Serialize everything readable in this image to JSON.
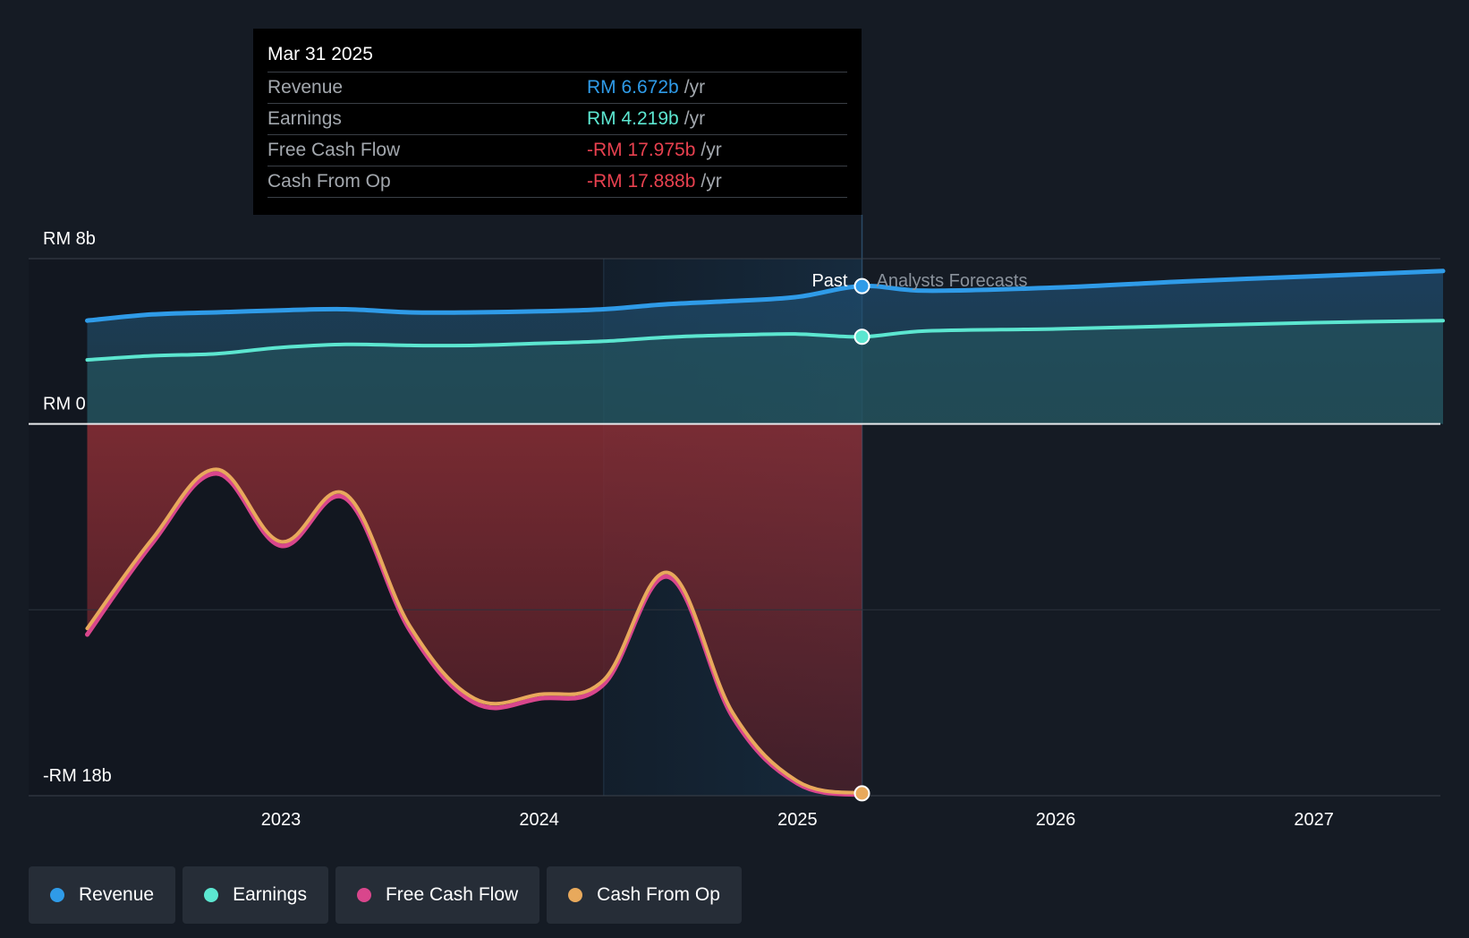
{
  "tooltip": {
    "date": "Mar 31 2025",
    "rows": [
      {
        "name": "Revenue",
        "value": "RM 6.672b",
        "unit": "/yr",
        "color": "#2f9be8"
      },
      {
        "name": "Earnings",
        "value": "RM 4.219b",
        "unit": "/yr",
        "color": "#5ce6d0"
      },
      {
        "name": "Free Cash Flow",
        "value": "-RM 17.975b",
        "unit": "/yr",
        "color": "#e8414f"
      },
      {
        "name": "Cash From Op",
        "value": "-RM 17.888b",
        "unit": "/yr",
        "color": "#e8414f"
      }
    ]
  },
  "past_label": "Past",
  "forecast_label": "Analysts Forecasts",
  "legend": [
    {
      "name": "Revenue",
      "color": "#2f9be8"
    },
    {
      "name": "Earnings",
      "color": "#5ce6d0"
    },
    {
      "name": "Free Cash Flow",
      "color": "#d9468c"
    },
    {
      "name": "Cash From Op",
      "color": "#e8a95c"
    }
  ],
  "chart_data": {
    "type": "area",
    "y_unit": "RM billions",
    "ylim": [
      -18,
      8
    ],
    "y_tick_values": [
      8,
      0,
      -18
    ],
    "y_tick_labels": [
      "RM 8b",
      "RM 0",
      "-RM 18b"
    ],
    "x_tick_values": [
      2023,
      2024,
      2025,
      2026,
      2027
    ],
    "x_tick_labels": [
      "2023",
      "2024",
      "2025",
      "2026",
      "2027"
    ],
    "xlim": [
      2022.0,
      2027.5
    ],
    "past_end": 2025.25,
    "grid": true,
    "legend_position": "bottom-left",
    "series": [
      {
        "name": "Revenue",
        "color": "#2f9be8",
        "points": [
          [
            2022.25,
            5.0
          ],
          [
            2022.5,
            5.3
          ],
          [
            2022.75,
            5.4
          ],
          [
            2023.0,
            5.5
          ],
          [
            2023.25,
            5.55
          ],
          [
            2023.5,
            5.4
          ],
          [
            2023.75,
            5.4
          ],
          [
            2024.0,
            5.45
          ],
          [
            2024.25,
            5.55
          ],
          [
            2024.5,
            5.8
          ],
          [
            2024.75,
            5.95
          ],
          [
            2025.0,
            6.15
          ],
          [
            2025.25,
            6.672
          ],
          [
            2025.5,
            6.45
          ],
          [
            2026.0,
            6.6
          ],
          [
            2026.5,
            6.9
          ],
          [
            2027.0,
            7.15
          ],
          [
            2027.5,
            7.4
          ]
        ]
      },
      {
        "name": "Earnings",
        "color": "#5ce6d0",
        "points": [
          [
            2022.25,
            3.1
          ],
          [
            2022.5,
            3.3
          ],
          [
            2022.75,
            3.4
          ],
          [
            2023.0,
            3.7
          ],
          [
            2023.25,
            3.85
          ],
          [
            2023.5,
            3.8
          ],
          [
            2023.75,
            3.8
          ],
          [
            2024.0,
            3.9
          ],
          [
            2024.25,
            4.0
          ],
          [
            2024.5,
            4.2
          ],
          [
            2024.75,
            4.3
          ],
          [
            2025.0,
            4.35
          ],
          [
            2025.25,
            4.219
          ],
          [
            2025.5,
            4.5
          ],
          [
            2026.0,
            4.6
          ],
          [
            2026.5,
            4.75
          ],
          [
            2027.0,
            4.9
          ],
          [
            2027.5,
            5.0
          ]
        ]
      },
      {
        "name": "Free Cash Flow",
        "color": "#d9468c",
        "points": [
          [
            2022.25,
            -10.2
          ],
          [
            2022.5,
            -5.8
          ],
          [
            2022.75,
            -2.4
          ],
          [
            2023.0,
            -5.9
          ],
          [
            2023.25,
            -3.6
          ],
          [
            2023.5,
            -10.0
          ],
          [
            2023.75,
            -13.5
          ],
          [
            2024.0,
            -13.3
          ],
          [
            2024.25,
            -12.6
          ],
          [
            2024.5,
            -7.4
          ],
          [
            2024.75,
            -14.2
          ],
          [
            2025.0,
            -17.4
          ],
          [
            2025.25,
            -17.975
          ]
        ]
      },
      {
        "name": "Cash From Op",
        "color": "#e8a95c",
        "points": [
          [
            2022.25,
            -9.9
          ],
          [
            2022.5,
            -5.6
          ],
          [
            2022.75,
            -2.2
          ],
          [
            2023.0,
            -5.7
          ],
          [
            2023.25,
            -3.4
          ],
          [
            2023.5,
            -9.8
          ],
          [
            2023.75,
            -13.3
          ],
          [
            2024.0,
            -13.1
          ],
          [
            2024.25,
            -12.4
          ],
          [
            2024.5,
            -7.2
          ],
          [
            2024.75,
            -14.0
          ],
          [
            2025.0,
            -17.3
          ],
          [
            2025.25,
            -17.888
          ]
        ]
      }
    ]
  }
}
